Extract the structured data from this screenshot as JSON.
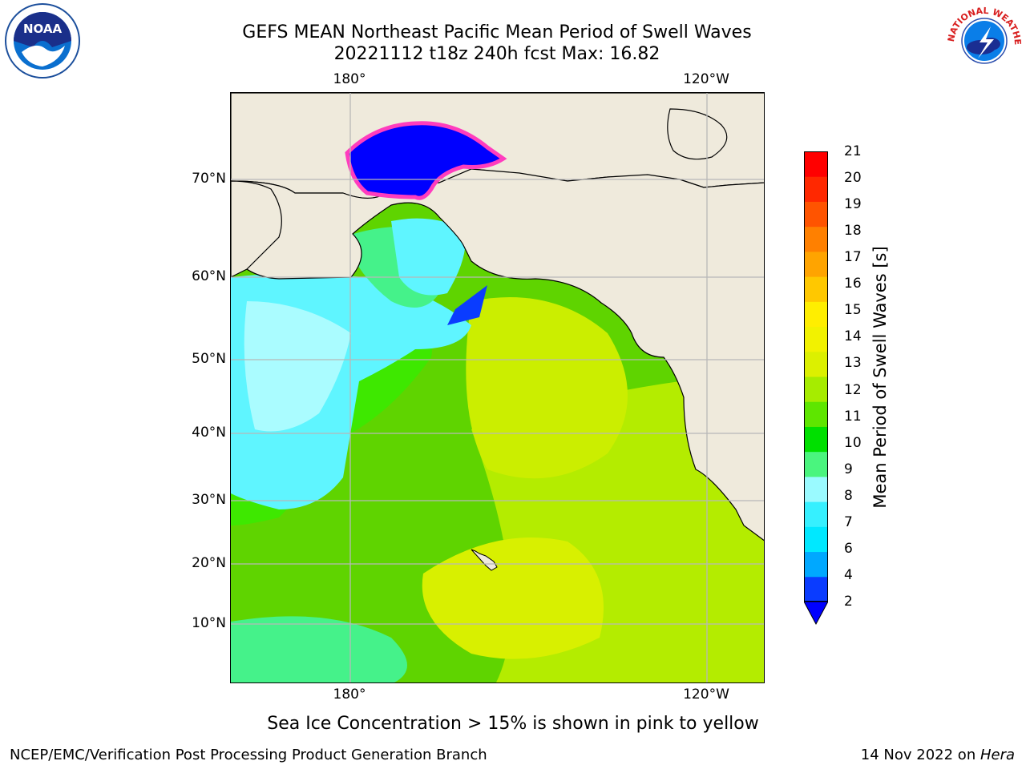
{
  "header": {
    "title_line1": "GEFS MEAN Northeast Pacific Mean Period of Swell Waves",
    "title_line2": "20221112 t18z 240h fcst   Max: 16.82"
  },
  "logos": {
    "left": {
      "icon": "noaa-logo",
      "text": "NOAA"
    },
    "right": {
      "icon": "nws-logo",
      "text": "NATIONAL WEATHER SERVICE"
    }
  },
  "axes": {
    "top_ticks": [
      "180°",
      "120°W"
    ],
    "bottom_ticks": [
      "180°",
      "120°W"
    ],
    "left_ticks": [
      "70°N",
      "60°N",
      "50°N",
      "40°N",
      "30°N",
      "20°N",
      "10°N"
    ]
  },
  "colorbar": {
    "label": "Mean Period of Swell Waves [s]",
    "ticks": [
      "21",
      "20",
      "19",
      "18",
      "17",
      "16",
      "15",
      "14",
      "13",
      "12",
      "11",
      "10",
      "9",
      "8",
      "7",
      "6",
      "4",
      "2"
    ],
    "colors_low_to_high": [
      "#0a3cff",
      "#00a8ff",
      "#00e8ff",
      "#36f0ff",
      "#9afaff",
      "#4af57e",
      "#00e000",
      "#5ee600",
      "#a6ec00",
      "#dcf000",
      "#f2f200",
      "#ffee00",
      "#ffc800",
      "#ffa400",
      "#ff8000",
      "#ff5400",
      "#ff2800",
      "#ff0000"
    ],
    "underflow_color": "#0000ff"
  },
  "map": {
    "land_color": "#efeadc",
    "ice_color": "#0000ff",
    "ocean_base_color": "#5fd400"
  },
  "note": "Sea Ice Concentration > 15% is shown in pink to yellow",
  "footer": {
    "left": "NCEP/EMC/Verification Post Processing Product Generation Branch",
    "date": "14 Nov 2022 on ",
    "machine": "Hera"
  }
}
